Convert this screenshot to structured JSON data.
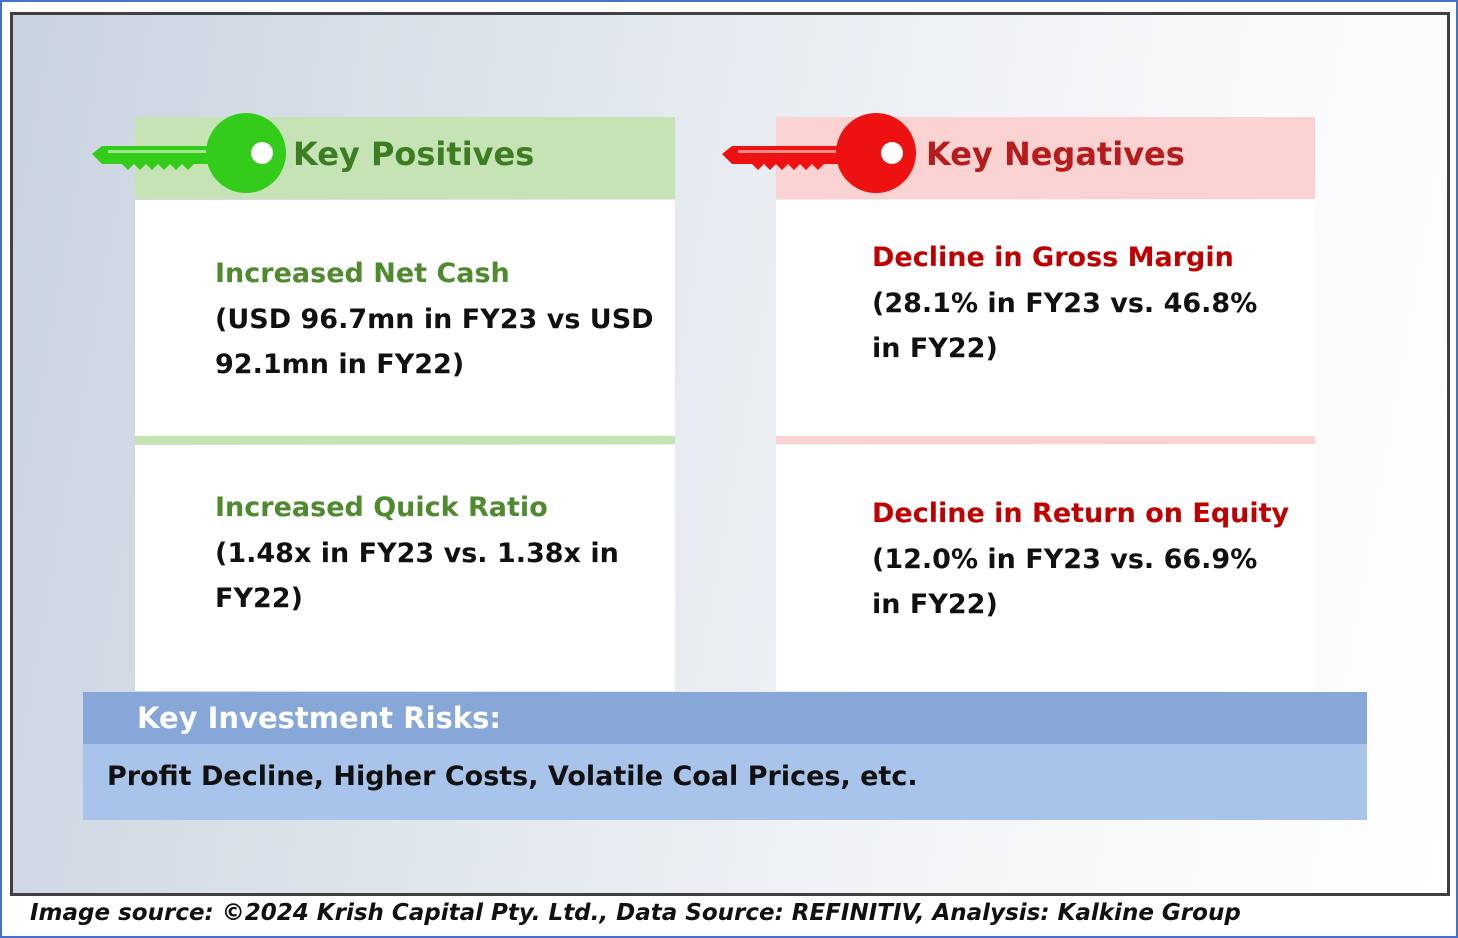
{
  "positives": {
    "title": "Key Positives",
    "color": "#2fbf2f",
    "items": [
      {
        "title": "Increased Net Cash",
        "body": "(USD 96.7mn in FY23 vs USD 92.1mn in FY22)"
      },
      {
        "title": "Increased Quick Ratio",
        "body": "(1.48x in FY23 vs. 1.38x in FY22)"
      }
    ]
  },
  "negatives": {
    "title": "Key Negatives",
    "color": "#ee1111",
    "items": [
      {
        "title": "Decline in Gross Margin",
        "body": "(28.1% in FY23 vs. 46.8% in FY22)"
      },
      {
        "title": "Decline in Return on Equity",
        "body": "(12.0% in FY23 vs. 66.9% in FY22)"
      }
    ]
  },
  "risks": {
    "title": "Key Investment Risks:",
    "text": "Profit Decline, Higher Costs, Volatile Coal Prices, etc."
  },
  "footer": {
    "source": "Image source: ©2024 Krish Capital Pty. Ltd., Data Source: REFINITIV, Analysis: Kalkine Group"
  }
}
